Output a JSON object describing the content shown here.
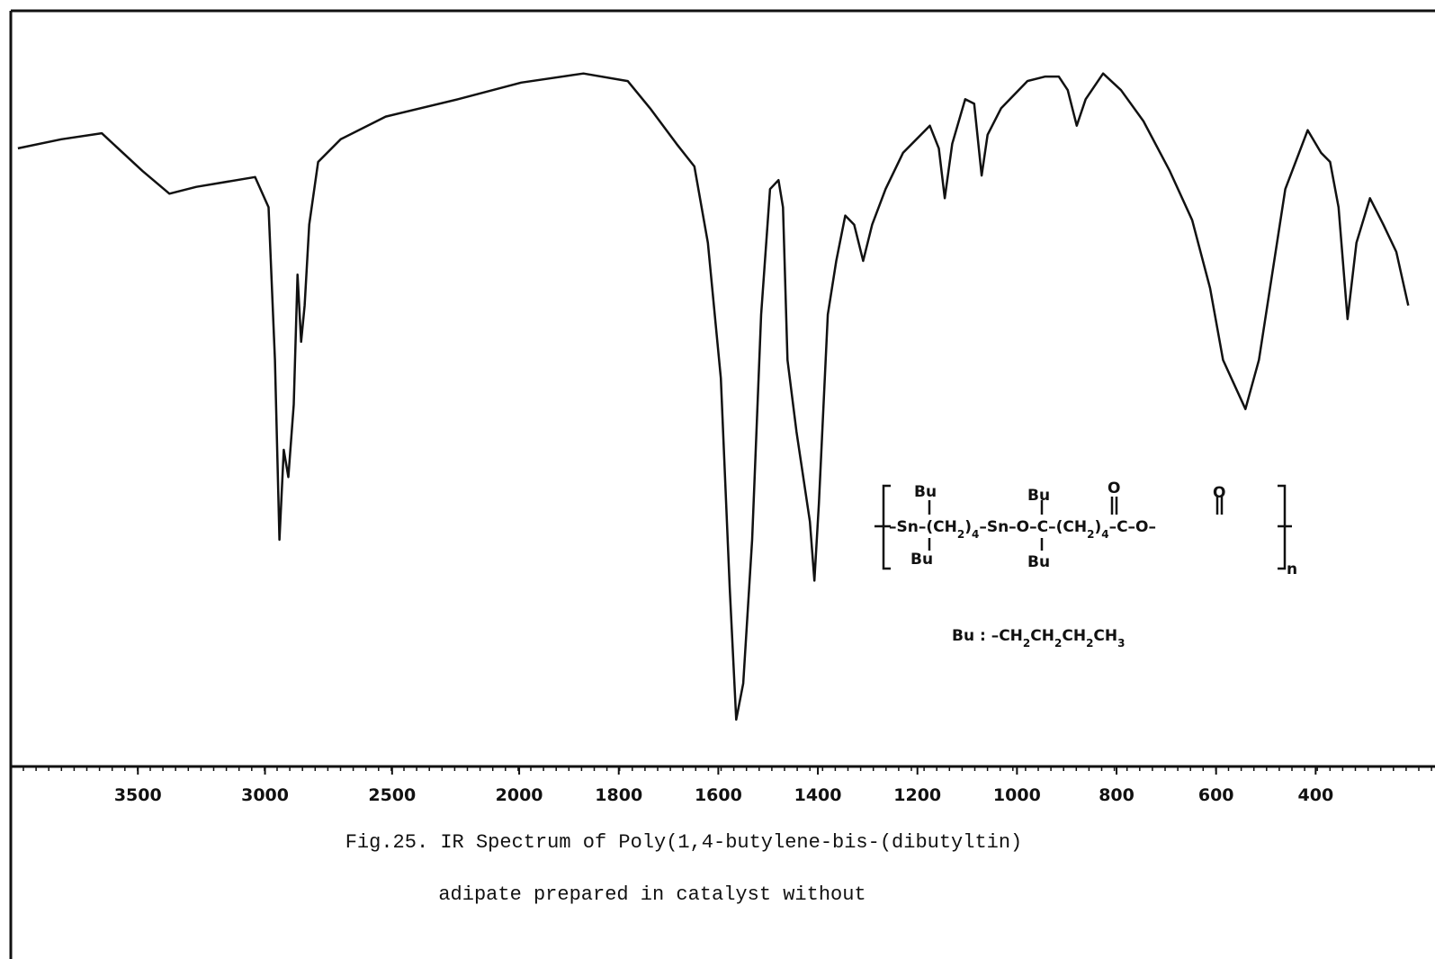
{
  "chart_data": {
    "type": "line",
    "x": [
      3972,
      3801,
      3642,
      3482,
      3376,
      3270,
      3039,
      2986,
      2961,
      2943,
      2926,
      2908,
      2887,
      2872,
      2858,
      2844,
      2826,
      2791,
      2702,
      2525,
      2241,
      1996,
      1871,
      1782,
      1737,
      1684,
      1648,
      1621,
      1595,
      1577,
      1564,
      1550,
      1532,
      1514,
      1496,
      1479,
      1470,
      1461,
      1443,
      1416,
      1407,
      1398,
      1380,
      1363,
      1345,
      1327,
      1309,
      1291,
      1264,
      1229,
      1175,
      1157,
      1145,
      1130,
      1104,
      1086,
      1071,
      1059,
      1032,
      979,
      943,
      916,
      898,
      880,
      862,
      827,
      791,
      746,
      693,
      648,
      612,
      586,
      541,
      514,
      461,
      416,
      389,
      371,
      354,
      336,
      318,
      291,
      264,
      238,
      214
    ],
    "values": [
      81.8,
      83.0,
      83.8,
      78.8,
      75.8,
      76.7,
      78.0,
      74.0,
      53.8,
      30.0,
      41.9,
      38.3,
      47.9,
      65.1,
      56.2,
      61.0,
      71.7,
      80.0,
      83.0,
      86.0,
      88.3,
      90.5,
      91.7,
      90.7,
      87.1,
      82.4,
      79.4,
      69.3,
      51.4,
      23.6,
      6.2,
      11.0,
      30.0,
      59.8,
      76.4,
      77.6,
      74.0,
      53.8,
      44.3,
      32.4,
      24.6,
      34.8,
      59.8,
      66.9,
      72.9,
      71.7,
      66.9,
      71.7,
      76.4,
      81.2,
      84.8,
      81.8,
      75.2,
      82.4,
      88.3,
      87.7,
      78.2,
      83.6,
      87.1,
      90.7,
      91.3,
      91.3,
      89.5,
      84.8,
      88.3,
      91.7,
      89.5,
      85.4,
      78.8,
      72.3,
      63.3,
      53.8,
      47.3,
      53.8,
      76.4,
      84.2,
      81.2,
      80.0,
      74.0,
      59.2,
      69.3,
      75.2,
      71.7,
      68.1,
      61.0
    ],
    "color": "#111111",
    "xlim": [
      4000,
      200
    ],
    "x_scale_break": 2000,
    "xticks": [
      3500,
      3000,
      2500,
      2000,
      1800,
      1600,
      1400,
      1200,
      1000,
      800,
      600,
      400
    ],
    "ylim": [
      0,
      100
    ],
    "caption": [
      "Fig.25. IR Spectrum of Poly(1,4-butylene-bis-(dibutyltin)",
      "adipate prepared in catalyst without"
    ],
    "structure": {
      "top_labels": [
        "Bu",
        "Bu",
        "O",
        "O"
      ],
      "bottom_labels": [
        "Bu",
        "Bu"
      ],
      "chain": [
        "–Sn–(CH",
        "2",
        ")",
        "4",
        "–Sn–O–C–(CH",
        "2",
        ")",
        "4",
        "–C–O–"
      ],
      "repeat": "n",
      "bu_def": [
        "Bu : –CH",
        "2",
        "CH",
        "2",
        "CH",
        "2",
        "CH",
        "3"
      ]
    }
  }
}
